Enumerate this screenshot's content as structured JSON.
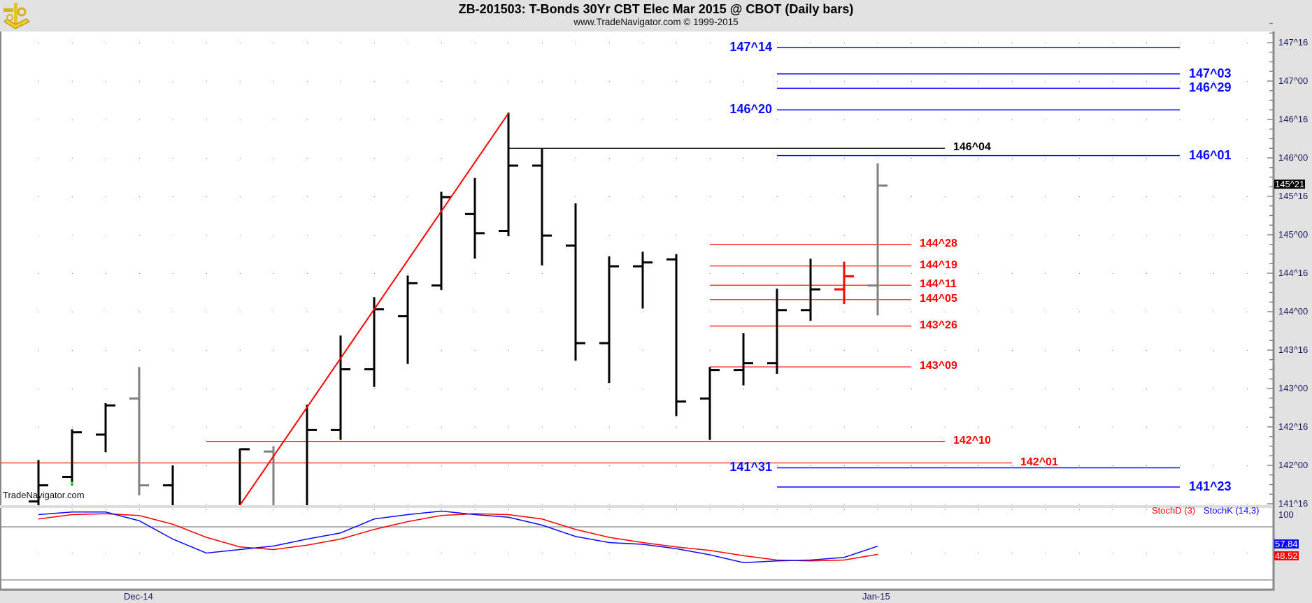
{
  "header": {
    "title": "ZB-201503:  T-Bonds 30Yr CBT Elec Mar 2015 @ CBOT  (Daily bars)",
    "subtitle": "www.TradeNavigator.com © 1999-2015",
    "logo_icon": "sextant-logo-icon"
  },
  "watermark": "TradeNavigator.com",
  "colors": {
    "blue": "#0a0aff",
    "red": "#ff0000",
    "black": "#000000",
    "gray": "#808080",
    "navy": "#1a1a5e"
  },
  "chart_data": {
    "type": "ohlc-bar",
    "title": "ZB-201503: T-Bonds 30Yr CBT Elec Mar 2015 @ CBOT (Daily bars)",
    "ylim": [
      141.4,
      147.75
    ],
    "y_ticks": [
      "147^16",
      "147^00",
      "146^16",
      "146^00",
      "145^16",
      "145^00",
      "144^16",
      "144^00",
      "143^16",
      "143^00",
      "142^16",
      "142^00",
      "141^16"
    ],
    "x_labels": [
      {
        "bar": 3,
        "text": "Dec-14"
      },
      {
        "bar": 25,
        "text": "Jan-15"
      }
    ],
    "last_price": "145^21",
    "bars": [
      {
        "i": 0,
        "o": 141.53,
        "h": 142.06,
        "l": 141.4,
        "c": 141.74,
        "color": "black"
      },
      {
        "i": 1,
        "o": 141.85,
        "h": 142.46,
        "l": 141.75,
        "c": 142.43,
        "color": "black",
        "low_marker": "green"
      },
      {
        "i": 2,
        "o": 142.4,
        "h": 142.8,
        "l": 142.18,
        "c": 142.78,
        "color": "black"
      },
      {
        "i": 3,
        "o": 142.87,
        "h": 143.27,
        "l": 141.62,
        "c": 141.74,
        "color": "gray"
      },
      {
        "i": 4,
        "o": 141.74,
        "h": 141.99,
        "l": 141.4,
        "c": 141.4,
        "color": "black"
      },
      {
        "i": 6,
        "o": 141.4,
        "h": 142.21,
        "l": 141.4,
        "c": 142.21,
        "color": "black"
      },
      {
        "i": 7,
        "o": 142.18,
        "h": 142.24,
        "l": 141.4,
        "c": 141.4,
        "color": "gray"
      },
      {
        "i": 8,
        "o": 141.4,
        "h": 142.78,
        "l": 141.4,
        "c": 142.46,
        "color": "black"
      },
      {
        "i": 9,
        "o": 142.46,
        "h": 143.68,
        "l": 142.34,
        "c": 143.25,
        "color": "black"
      },
      {
        "i": 10,
        "o": 143.25,
        "h": 144.18,
        "l": 143.03,
        "c": 144.03,
        "color": "black"
      },
      {
        "i": 11,
        "o": 143.94,
        "h": 144.46,
        "l": 143.33,
        "c": 144.37,
        "color": "black"
      },
      {
        "i": 12,
        "o": 144.34,
        "h": 145.55,
        "l": 144.29,
        "c": 145.49,
        "color": "black"
      },
      {
        "i": 13,
        "o": 145.27,
        "h": 145.73,
        "l": 144.7,
        "c": 145.02,
        "color": "black"
      },
      {
        "i": 14,
        "o": 145.05,
        "h": 146.58,
        "l": 144.99,
        "c": 145.9,
        "color": "black"
      },
      {
        "i": 15,
        "o": 145.9,
        "h": 146.11,
        "l": 144.61,
        "c": 144.99,
        "color": "black"
      },
      {
        "i": 16,
        "o": 144.86,
        "h": 145.4,
        "l": 143.37,
        "c": 143.59,
        "color": "black"
      },
      {
        "i": 17,
        "o": 143.59,
        "h": 144.71,
        "l": 143.08,
        "c": 144.59,
        "color": "black"
      },
      {
        "i": 18,
        "o": 144.59,
        "h": 144.77,
        "l": 144.05,
        "c": 144.64,
        "color": "black"
      },
      {
        "i": 19,
        "o": 144.68,
        "h": 144.74,
        "l": 142.65,
        "c": 142.83,
        "color": "black"
      },
      {
        "i": 20,
        "o": 142.87,
        "h": 143.27,
        "l": 142.34,
        "c": 143.24,
        "color": "black"
      },
      {
        "i": 21,
        "o": 143.24,
        "h": 143.71,
        "l": 143.05,
        "c": 143.33,
        "color": "black"
      },
      {
        "i": 22,
        "o": 143.33,
        "h": 144.29,
        "l": 143.2,
        "c": 144.02,
        "color": "black"
      },
      {
        "i": 23,
        "o": 144.02,
        "h": 144.68,
        "l": 143.89,
        "c": 144.29,
        "color": "black"
      },
      {
        "i": 24,
        "o": 144.29,
        "h": 144.64,
        "l": 144.11,
        "c": 144.46,
        "color": "red"
      },
      {
        "i": 25,
        "o": 144.34,
        "h": 145.92,
        "l": 143.96,
        "c": 145.64,
        "color": "gray"
      }
    ],
    "levels": [
      {
        "label": "147^14",
        "price": 147.4375,
        "color": "blue",
        "group": "blue",
        "label_side": "left"
      },
      {
        "label": "147^03",
        "price": 147.09375,
        "color": "blue",
        "group": "blue",
        "label_side": "right"
      },
      {
        "label": "146^29",
        "price": 146.90625,
        "color": "blue",
        "group": "blue",
        "label_side": "right"
      },
      {
        "label": "146^20",
        "price": 146.625,
        "color": "blue",
        "group": "blue",
        "label_side": "left"
      },
      {
        "label": "146^01",
        "price": 146.03125,
        "color": "blue",
        "group": "blue",
        "label_side": "right"
      },
      {
        "label": "141^31",
        "price": 141.96875,
        "color": "blue",
        "group": "blue",
        "label_side": "left"
      },
      {
        "label": "141^23",
        "price": 141.71875,
        "color": "blue",
        "group": "blue",
        "label_side": "right"
      },
      {
        "label": "146^04",
        "price": 146.125,
        "color": "black",
        "group": "high",
        "label_side": "right"
      },
      {
        "label": "144^28",
        "price": 144.875,
        "color": "red",
        "group": "red",
        "label_side": "right"
      },
      {
        "label": "144^19",
        "price": 144.59375,
        "color": "red",
        "group": "red",
        "label_side": "right"
      },
      {
        "label": "144^11",
        "price": 144.34375,
        "color": "red",
        "group": "red",
        "label_side": "right"
      },
      {
        "label": "144^05",
        "price": 144.15625,
        "color": "red",
        "group": "red",
        "label_side": "right"
      },
      {
        "label": "143^26",
        "price": 143.8125,
        "color": "red",
        "group": "red",
        "label_side": "right"
      },
      {
        "label": "143^09",
        "price": 143.28125,
        "color": "red",
        "group": "red",
        "label_side": "right"
      },
      {
        "label": "142^10",
        "price": 142.3125,
        "color": "red",
        "group": "mid",
        "label_side": "right"
      },
      {
        "label": "142^01",
        "price": 142.03125,
        "color": "red",
        "group": "full",
        "label_side": "right"
      }
    ],
    "trendline": {
      "from": {
        "bar": 6,
        "price": 141.48
      },
      "to": {
        "bar": 14,
        "price": 146.58
      },
      "color": "red"
    },
    "stochastic": {
      "legend_d": "StochD (3)",
      "legend_k": "StochK (14,3)",
      "axis_label": "100",
      "ylim": [
        0,
        100
      ],
      "k_last": "57.84",
      "d_last": "48.52",
      "k": [
        94,
        97,
        97,
        87,
        66,
        50,
        54,
        58,
        66,
        73,
        89,
        94,
        98,
        94,
        91,
        82,
        69,
        62,
        60,
        55,
        48,
        39,
        41,
        42,
        45,
        57.84
      ],
      "d": [
        89,
        94,
        95,
        93,
        83,
        68,
        57,
        54,
        59,
        66,
        77,
        86,
        93,
        95,
        94,
        89,
        77,
        68,
        62,
        57,
        53,
        47,
        42,
        41,
        42,
        48.52
      ]
    }
  }
}
